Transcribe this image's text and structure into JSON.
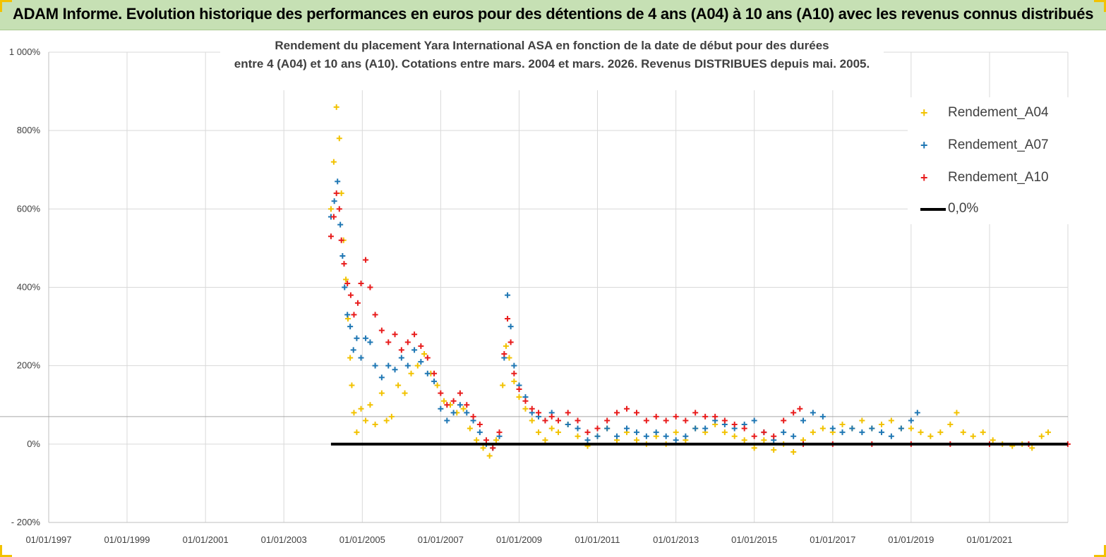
{
  "header": {
    "title": "ADAM Informe. Evolution historique des performances en euros pour des détentions de 4 ans (A04) à 10 ans (A10) avec les revenus connus distribués"
  },
  "chart_data": {
    "type": "scatter",
    "title_lines": [
      "Rendement du placement Yara International ASA en fonction de la date de début pour des durées",
      "entre 4 (A04) et 10 ans (A10). Cotations entre mars. 2004 et mars. 2026. Revenus DISTRIBUES depuis mai. 2005."
    ],
    "x_axis": {
      "type": "date",
      "min": "1997-01-01",
      "max": "2023-01-01",
      "ticks": [
        "1997-01-01",
        "1999-01-01",
        "2001-01-01",
        "2003-01-01",
        "2005-01-01",
        "2007-01-01",
        "2009-01-01",
        "2011-01-01",
        "2013-01-01",
        "2015-01-01",
        "2017-01-01",
        "2019-01-01",
        "2021-01-01"
      ],
      "tick_labels": [
        "01/01/1997",
        "01/01/1999",
        "01/01/2001",
        "01/01/2003",
        "01/01/2005",
        "01/01/2007",
        "01/01/2009",
        "01/01/2011",
        "01/01/2013",
        "01/01/2015",
        "01/01/2017",
        "01/01/2019",
        "01/01/2021"
      ]
    },
    "y_axis": {
      "min": -200,
      "max": 1000,
      "unit": "%",
      "ticks": [
        -200,
        0,
        200,
        400,
        600,
        800,
        1000
      ],
      "tick_labels": [
        "- 200%",
        "0%",
        "200%",
        "400%",
        "600%",
        "800%",
        "1 000%"
      ]
    },
    "grid": true,
    "reference_line_y": 70,
    "legend": {
      "placement": "top-right"
    },
    "series": [
      {
        "name": "Rendement_A04",
        "color": "#f2c200",
        "marker": "+",
        "points": [
          [
            "2004-03-15",
            600
          ],
          [
            "2004-04-10",
            720
          ],
          [
            "2004-05-05",
            860
          ],
          [
            "2004-06-01",
            780
          ],
          [
            "2004-06-20",
            640
          ],
          [
            "2004-07-10",
            520
          ],
          [
            "2004-08-01",
            420
          ],
          [
            "2004-08-20",
            320
          ],
          [
            "2004-09-10",
            220
          ],
          [
            "2004-09-25",
            150
          ],
          [
            "2004-10-15",
            80
          ],
          [
            "2004-11-10",
            30
          ],
          [
            "2004-12-20",
            90
          ],
          [
            "2005-02-01",
            60
          ],
          [
            "2005-03-15",
            100
          ],
          [
            "2005-05-01",
            50
          ],
          [
            "2005-07-01",
            130
          ],
          [
            "2005-08-15",
            60
          ],
          [
            "2005-10-01",
            70
          ],
          [
            "2005-12-01",
            150
          ],
          [
            "2006-02-01",
            130
          ],
          [
            "2006-04-01",
            180
          ],
          [
            "2006-06-01",
            200
          ],
          [
            "2006-08-01",
            230
          ],
          [
            "2006-10-01",
            180
          ],
          [
            "2006-12-01",
            150
          ],
          [
            "2007-02-01",
            110
          ],
          [
            "2007-04-01",
            100
          ],
          [
            "2007-06-01",
            80
          ],
          [
            "2007-08-01",
            90
          ],
          [
            "2007-10-01",
            40
          ],
          [
            "2007-12-01",
            10
          ],
          [
            "2008-02-01",
            -10
          ],
          [
            "2008-04-01",
            -30
          ],
          [
            "2008-06-01",
            10
          ],
          [
            "2008-08-01",
            150
          ],
          [
            "2008-09-01",
            250
          ],
          [
            "2008-10-01",
            220
          ],
          [
            "2008-11-15",
            160
          ],
          [
            "2009-01-01",
            120
          ],
          [
            "2009-03-01",
            90
          ],
          [
            "2009-05-01",
            60
          ],
          [
            "2009-07-01",
            30
          ],
          [
            "2009-09-01",
            10
          ],
          [
            "2009-11-01",
            40
          ],
          [
            "2010-01-01",
            30
          ],
          [
            "2010-04-01",
            50
          ],
          [
            "2010-07-01",
            20
          ],
          [
            "2010-10-01",
            -5
          ],
          [
            "2011-01-01",
            20
          ],
          [
            "2011-04-01",
            40
          ],
          [
            "2011-07-01",
            10
          ],
          [
            "2011-10-01",
            30
          ],
          [
            "2012-01-01",
            10
          ],
          [
            "2012-04-01",
            0
          ],
          [
            "2012-07-01",
            20
          ],
          [
            "2012-10-01",
            0
          ],
          [
            "2013-01-01",
            30
          ],
          [
            "2013-04-01",
            10
          ],
          [
            "2013-07-01",
            40
          ],
          [
            "2013-10-01",
            30
          ],
          [
            "2014-01-01",
            50
          ],
          [
            "2014-04-01",
            30
          ],
          [
            "2014-07-01",
            20
          ],
          [
            "2014-10-01",
            10
          ],
          [
            "2015-01-01",
            -10
          ],
          [
            "2015-04-01",
            10
          ],
          [
            "2015-07-01",
            -15
          ],
          [
            "2015-10-01",
            0
          ],
          [
            "2016-01-01",
            -20
          ],
          [
            "2016-04-01",
            10
          ],
          [
            "2016-07-01",
            30
          ],
          [
            "2016-10-01",
            40
          ],
          [
            "2017-01-01",
            30
          ],
          [
            "2017-04-01",
            50
          ],
          [
            "2017-07-01",
            40
          ],
          [
            "2017-10-01",
            60
          ],
          [
            "2018-01-01",
            40
          ],
          [
            "2018-04-01",
            50
          ],
          [
            "2018-07-01",
            60
          ],
          [
            "2018-10-01",
            40
          ],
          [
            "2019-01-01",
            40
          ],
          [
            "2019-04-01",
            30
          ],
          [
            "2019-07-01",
            20
          ],
          [
            "2019-10-01",
            30
          ],
          [
            "2020-01-01",
            50
          ],
          [
            "2020-03-01",
            80
          ],
          [
            "2020-05-01",
            30
          ],
          [
            "2020-08-01",
            20
          ],
          [
            "2020-11-01",
            30
          ],
          [
            "2021-02-01",
            10
          ],
          [
            "2021-05-01",
            0
          ],
          [
            "2021-08-01",
            -5
          ],
          [
            "2021-11-01",
            0
          ],
          [
            "2022-02-01",
            -10
          ],
          [
            "2022-05-01",
            20
          ],
          [
            "2022-07-01",
            30
          ]
        ]
      },
      {
        "name": "Rendement_A07",
        "color": "#1f77b4",
        "marker": "+",
        "points": [
          [
            "2004-03-15",
            580
          ],
          [
            "2004-04-15",
            620
          ],
          [
            "2004-05-15",
            670
          ],
          [
            "2004-06-10",
            560
          ],
          [
            "2004-07-01",
            480
          ],
          [
            "2004-07-20",
            400
          ],
          [
            "2004-08-15",
            330
          ],
          [
            "2004-09-10",
            300
          ],
          [
            "2004-10-10",
            240
          ],
          [
            "2004-11-10",
            270
          ],
          [
            "2004-12-20",
            220
          ],
          [
            "2005-02-01",
            270
          ],
          [
            "2005-03-15",
            260
          ],
          [
            "2005-05-01",
            200
          ],
          [
            "2005-07-01",
            170
          ],
          [
            "2005-09-01",
            200
          ],
          [
            "2005-11-01",
            190
          ],
          [
            "2006-01-01",
            220
          ],
          [
            "2006-03-01",
            200
          ],
          [
            "2006-05-01",
            240
          ],
          [
            "2006-07-01",
            210
          ],
          [
            "2006-09-01",
            180
          ],
          [
            "2006-11-01",
            160
          ],
          [
            "2007-01-01",
            90
          ],
          [
            "2007-03-01",
            60
          ],
          [
            "2007-05-01",
            80
          ],
          [
            "2007-07-01",
            100
          ],
          [
            "2007-09-01",
            80
          ],
          [
            "2007-11-01",
            60
          ],
          [
            "2008-01-01",
            30
          ],
          [
            "2008-03-01",
            0
          ],
          [
            "2008-05-01",
            -10
          ],
          [
            "2008-07-01",
            20
          ],
          [
            "2008-08-15",
            220
          ],
          [
            "2008-09-15",
            380
          ],
          [
            "2008-10-15",
            300
          ],
          [
            "2008-11-15",
            200
          ],
          [
            "2009-01-01",
            150
          ],
          [
            "2009-03-01",
            120
          ],
          [
            "2009-05-01",
            80
          ],
          [
            "2009-07-01",
            70
          ],
          [
            "2009-09-01",
            60
          ],
          [
            "2009-11-01",
            80
          ],
          [
            "2010-01-01",
            60
          ],
          [
            "2010-04-01",
            50
          ],
          [
            "2010-07-01",
            40
          ],
          [
            "2010-10-01",
            10
          ],
          [
            "2011-01-01",
            20
          ],
          [
            "2011-04-01",
            40
          ],
          [
            "2011-07-01",
            20
          ],
          [
            "2011-10-01",
            40
          ],
          [
            "2012-01-01",
            30
          ],
          [
            "2012-04-01",
            20
          ],
          [
            "2012-07-01",
            30
          ],
          [
            "2012-10-01",
            20
          ],
          [
            "2013-01-01",
            10
          ],
          [
            "2013-04-01",
            20
          ],
          [
            "2013-07-01",
            40
          ],
          [
            "2013-10-01",
            40
          ],
          [
            "2014-01-01",
            60
          ],
          [
            "2014-04-01",
            50
          ],
          [
            "2014-07-01",
            40
          ],
          [
            "2014-10-01",
            50
          ],
          [
            "2015-01-01",
            60
          ],
          [
            "2015-04-01",
            30
          ],
          [
            "2015-07-01",
            10
          ],
          [
            "2015-10-01",
            30
          ],
          [
            "2016-01-01",
            20
          ],
          [
            "2016-04-01",
            60
          ],
          [
            "2016-07-01",
            80
          ],
          [
            "2016-10-01",
            70
          ],
          [
            "2017-01-01",
            40
          ],
          [
            "2017-04-01",
            30
          ],
          [
            "2017-07-01",
            40
          ],
          [
            "2017-10-01",
            30
          ],
          [
            "2018-01-01",
            40
          ],
          [
            "2018-04-01",
            30
          ],
          [
            "2018-07-01",
            20
          ],
          [
            "2018-10-01",
            40
          ],
          [
            "2019-01-01",
            60
          ],
          [
            "2019-03-01",
            80
          ]
        ]
      },
      {
        "name": "Rendement_A10",
        "color": "#e81c1c",
        "marker": "+",
        "points": [
          [
            "2004-03-15",
            530
          ],
          [
            "2004-04-10",
            580
          ],
          [
            "2004-05-05",
            640
          ],
          [
            "2004-06-01",
            600
          ],
          [
            "2004-06-20",
            520
          ],
          [
            "2004-07-15",
            460
          ],
          [
            "2004-08-15",
            410
          ],
          [
            "2004-09-15",
            380
          ],
          [
            "2004-10-15",
            330
          ],
          [
            "2004-11-20",
            360
          ],
          [
            "2004-12-20",
            410
          ],
          [
            "2005-02-01",
            470
          ],
          [
            "2005-03-15",
            400
          ],
          [
            "2005-05-01",
            330
          ],
          [
            "2005-07-01",
            290
          ],
          [
            "2005-09-01",
            260
          ],
          [
            "2005-11-01",
            280
          ],
          [
            "2006-01-01",
            240
          ],
          [
            "2006-03-01",
            260
          ],
          [
            "2006-05-01",
            280
          ],
          [
            "2006-07-01",
            250
          ],
          [
            "2006-09-01",
            220
          ],
          [
            "2006-11-01",
            180
          ],
          [
            "2007-01-01",
            130
          ],
          [
            "2007-03-01",
            100
          ],
          [
            "2007-05-01",
            110
          ],
          [
            "2007-07-01",
            130
          ],
          [
            "2007-09-01",
            100
          ],
          [
            "2007-11-01",
            70
          ],
          [
            "2008-01-01",
            50
          ],
          [
            "2008-03-01",
            10
          ],
          [
            "2008-05-01",
            -10
          ],
          [
            "2008-07-01",
            30
          ],
          [
            "2008-08-15",
            230
          ],
          [
            "2008-09-15",
            320
          ],
          [
            "2008-10-15",
            260
          ],
          [
            "2008-11-15",
            180
          ],
          [
            "2009-01-01",
            140
          ],
          [
            "2009-03-01",
            110
          ],
          [
            "2009-05-01",
            90
          ],
          [
            "2009-07-01",
            80
          ],
          [
            "2009-09-01",
            60
          ],
          [
            "2009-11-01",
            70
          ],
          [
            "2010-01-01",
            60
          ],
          [
            "2010-04-01",
            80
          ],
          [
            "2010-07-01",
            60
          ],
          [
            "2010-10-01",
            30
          ],
          [
            "2011-01-01",
            40
          ],
          [
            "2011-04-01",
            60
          ],
          [
            "2011-07-01",
            80
          ],
          [
            "2011-10-01",
            90
          ],
          [
            "2012-01-01",
            80
          ],
          [
            "2012-04-01",
            60
          ],
          [
            "2012-07-01",
            70
          ],
          [
            "2012-10-01",
            60
          ],
          [
            "2013-01-01",
            70
          ],
          [
            "2013-04-01",
            60
          ],
          [
            "2013-07-01",
            80
          ],
          [
            "2013-10-01",
            70
          ],
          [
            "2014-01-01",
            70
          ],
          [
            "2014-04-01",
            60
          ],
          [
            "2014-07-01",
            50
          ],
          [
            "2014-10-01",
            40
          ],
          [
            "2015-01-01",
            20
          ],
          [
            "2015-04-01",
            30
          ],
          [
            "2015-07-01",
            20
          ],
          [
            "2015-10-01",
            60
          ],
          [
            "2016-01-01",
            80
          ],
          [
            "2016-03-01",
            90
          ],
          [
            "2016-04-01",
            0
          ],
          [
            "2017-01-01",
            0
          ],
          [
            "2018-01-01",
            0
          ],
          [
            "2019-01-01",
            0
          ],
          [
            "2020-01-01",
            0
          ],
          [
            "2021-01-01",
            0
          ],
          [
            "2022-01-01",
            0
          ],
          [
            "2022-12-31",
            0
          ]
        ]
      },
      {
        "name": "0,0%",
        "color": "#000000",
        "marker": "line",
        "points": [
          [
            "2004-03-15",
            0
          ],
          [
            "2022-12-31",
            0
          ]
        ]
      }
    ]
  }
}
